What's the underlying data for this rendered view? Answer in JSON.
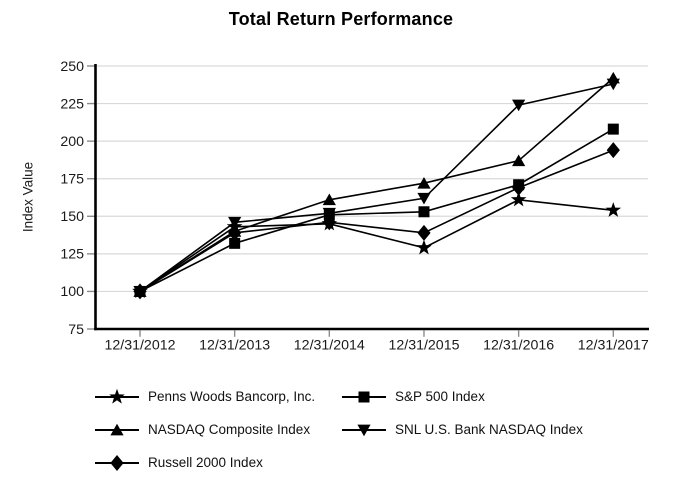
{
  "chart_data": {
    "type": "line",
    "title": "Total Return Performance",
    "ylabel": "Index Value",
    "xlabel": "",
    "categories": [
      "12/31/2012",
      "12/31/2013",
      "12/31/2014",
      "12/31/2015",
      "12/31/2016",
      "12/31/2017"
    ],
    "yticks": [
      250,
      225,
      200,
      175,
      150,
      125,
      100,
      75
    ],
    "ylim": [
      75,
      250
    ],
    "grid": "horizontal",
    "legend_position": "bottom-two-columns",
    "colors": {
      "series_line": "#000000",
      "marker_fill": "#000000",
      "gridline": "#d9d9d9",
      "tick": "#8c8c8c",
      "axis": "#000000",
      "text": "#1a1a1a",
      "background": "#ffffff"
    },
    "series": [
      {
        "name": "Penns Woods Bancorp, Inc.",
        "marker": "star",
        "values": [
          100,
          143,
          145,
          129,
          161,
          154
        ]
      },
      {
        "name": "S&P 500 Index",
        "marker": "square",
        "values": [
          100,
          132,
          151,
          153,
          171,
          208
        ]
      },
      {
        "name": "NASDAQ Composite Index",
        "marker": "triangle-up",
        "values": [
          100,
          140,
          161,
          172,
          187,
          242
        ]
      },
      {
        "name": "SNL U.S. Bank NASDAQ Index",
        "marker": "triangle-down",
        "values": [
          100,
          146,
          152,
          162,
          224,
          238
        ]
      },
      {
        "name": "Russell 2000 Index",
        "marker": "diamond",
        "values": [
          100,
          139,
          146,
          139,
          169,
          194
        ]
      }
    ]
  }
}
